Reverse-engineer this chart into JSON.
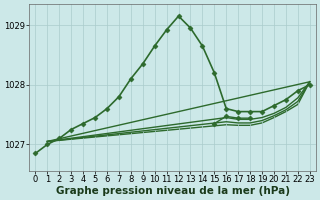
{
  "xlabel": "Graphe pression niveau de la mer (hPa)",
  "background_color": "#cce8e8",
  "grid_color": "#aacccc",
  "line_color": "#2d6a2d",
  "xlim": [
    -0.5,
    23.5
  ],
  "ylim": [
    1026.55,
    1029.35
  ],
  "yticks": [
    1027,
    1028,
    1029
  ],
  "xticks": [
    0,
    1,
    2,
    3,
    4,
    5,
    6,
    7,
    8,
    9,
    10,
    11,
    12,
    13,
    14,
    15,
    16,
    17,
    18,
    19,
    20,
    21,
    22,
    23
  ],
  "series": [
    {
      "x": [
        0,
        1,
        2,
        3,
        4,
        5,
        6,
        7,
        8,
        9,
        10,
        11,
        12,
        13,
        14,
        15,
        16,
        17,
        18,
        19,
        20,
        21,
        22,
        23
      ],
      "y": [
        1026.85,
        1027.0,
        1027.1,
        1027.25,
        1027.35,
        1027.45,
        1027.6,
        1027.8,
        1028.1,
        1028.35,
        1028.65,
        1028.92,
        1029.15,
        1028.95,
        1028.65,
        1028.2,
        1027.6,
        1027.55,
        1027.55,
        1027.55,
        1027.65,
        1027.75,
        1027.9,
        1028.0
      ],
      "marker": "D",
      "markersize": 2.5,
      "linewidth": 1.2,
      "color": "#2d6a2d",
      "zorder": 5,
      "has_markers": true
    },
    {
      "x": [
        1,
        23
      ],
      "y": [
        1027.05,
        1028.05
      ],
      "marker": "D",
      "markersize": 2.5,
      "linewidth": 1.0,
      "color": "#2d6a2d",
      "zorder": 4,
      "has_markers": false
    },
    {
      "x": [
        1,
        16,
        17,
        18,
        19,
        20,
        21,
        22,
        23
      ],
      "y": [
        1027.05,
        1027.45,
        1027.42,
        1027.42,
        1027.45,
        1027.52,
        1027.62,
        1027.78,
        1028.05
      ],
      "marker": "D",
      "markersize": 2.5,
      "linewidth": 1.0,
      "color": "#2d6a2d",
      "zorder": 3,
      "has_markers": false
    },
    {
      "x": [
        1,
        16,
        17,
        18,
        19,
        20,
        21,
        22,
        23
      ],
      "y": [
        1027.05,
        1027.38,
        1027.36,
        1027.36,
        1027.4,
        1027.48,
        1027.58,
        1027.72,
        1028.05
      ],
      "marker": "D",
      "markersize": 2.5,
      "linewidth": 1.0,
      "color": "#2d6a2d",
      "zorder": 2,
      "has_markers": false
    },
    {
      "x": [
        1,
        16,
        17,
        18,
        19,
        20,
        21,
        22,
        23
      ],
      "y": [
        1027.05,
        1027.33,
        1027.32,
        1027.32,
        1027.36,
        1027.45,
        1027.55,
        1027.67,
        1028.05
      ],
      "marker": "D",
      "markersize": 2.5,
      "linewidth": 1.0,
      "color": "#2d6a2d",
      "zorder": 1,
      "has_markers": false
    },
    {
      "x": [
        15,
        16,
        17,
        18
      ],
      "y": [
        1027.35,
        1027.47,
        1027.44,
        1027.44
      ],
      "marker": "D",
      "markersize": 2.5,
      "linewidth": 1.0,
      "color": "#2d6a2d",
      "zorder": 6,
      "has_markers": true
    }
  ],
  "tick_fontsize": 6,
  "xlabel_fontsize": 7.5,
  "xlabel_bold": true
}
